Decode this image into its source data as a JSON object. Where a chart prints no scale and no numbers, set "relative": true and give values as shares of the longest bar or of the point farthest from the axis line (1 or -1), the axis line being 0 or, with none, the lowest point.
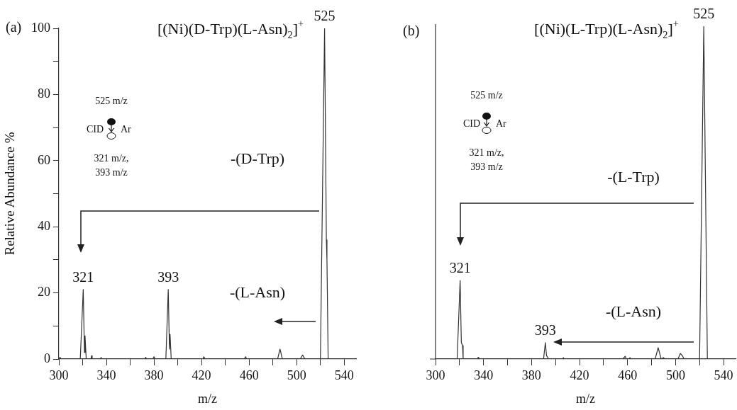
{
  "chart_data": [
    {
      "type": "line",
      "title": "[(Ni)(D-Trp)(L-Asn)$_{2}$]$^{+}$",
      "xlabel": "m/z",
      "ylabel": "Relative Abundance %",
      "x": [
        300,
        301,
        302,
        318,
        320.5,
        321.5,
        322,
        323,
        327,
        327.5,
        328,
        335,
        335.5,
        336,
        372,
        373,
        374,
        379,
        380,
        381,
        390,
        392,
        393,
        393.5,
        394.5,
        421,
        422,
        423,
        456,
        457,
        458,
        484,
        486,
        488,
        503,
        505,
        507,
        520,
        523.5,
        525,
        525.5,
        526.5,
        550
      ],
      "series": [
        {
          "color": "#333333",
          "values": [
            0,
            0.5,
            0,
            0,
            21,
            2,
            7,
            0,
            0,
            1,
            0,
            0,
            0.5,
            0,
            0,
            0.5,
            0,
            0,
            0.7,
            0,
            0,
            21,
            3,
            7.5,
            0,
            0,
            0.7,
            0,
            0,
            0.7,
            0,
            0,
            3,
            0,
            0,
            1.2,
            0,
            0,
            100,
            36,
            30,
            0,
            0
          ]
        }
      ],
      "xlim": [
        300,
        550
      ],
      "xticks": [
        300,
        {
          "value": 320,
          "label": null
        },
        340,
        {
          "value": 360,
          "label": null
        },
        380,
        {
          "value": 400,
          "label": null
        },
        420,
        {
          "value": 440,
          "label": null
        },
        460,
        {
          "value": 480,
          "label": null
        },
        500,
        {
          "value": 520,
          "label": null
        },
        540
      ],
      "ylim": [
        0,
        100
      ],
      "yticks": [
        0,
        {
          "value": 10,
          "label": null
        },
        20,
        {
          "value": 30,
          "label": null
        },
        40,
        {
          "value": 50,
          "label": null
        },
        60,
        {
          "value": 70,
          "label": null
        },
        80,
        {
          "value": 90,
          "label": null
        },
        100
      ],
      "grid": false,
      "legend": false,
      "marker": "none",
      "line_style": "solid",
      "annotations": [
        "(a)",
        {
          "text": "525",
          "x": 523.5,
          "y": 100
        },
        {
          "text": "321",
          "x": 320.5,
          "y": 21
        },
        {
          "text": "393",
          "x": 392,
          "y": 21
        },
        "-(D-Trp)",
        "-(L-Asn)",
        "525 m/z",
        "CID",
        "Ar",
        "321 m/z,",
        "393 m/z"
      ]
    },
    {
      "type": "line",
      "title": "[(Ni)(L-Trp)(L-Asn)$_{2}$]$^{+}$",
      "xlabel": "m/z",
      "relative": true,
      "x": [
        300,
        318,
        320.5,
        321.5,
        322.5,
        323,
        335,
        335.5,
        336,
        390,
        391.5,
        392.5,
        393.5,
        394,
        406,
        406.5,
        407,
        456,
        458,
        459,
        461,
        462,
        463,
        483,
        485.5,
        488,
        490,
        491,
        502,
        504,
        506,
        507,
        520,
        523.5,
        526.5,
        550
      ],
      "series": [
        {
          "color": "#333333",
          "values": [
            0,
            0,
            0.236,
            0.05,
            0.04,
            0,
            0,
            0.005,
            0,
            0,
            0.049,
            0.01,
            0.005,
            0,
            0,
            0.004,
            0,
            0,
            0.008,
            0,
            0,
            0.004,
            0,
            0,
            0.034,
            0,
            0.004,
            0,
            0,
            0.017,
            0.008,
            0,
            0,
            1,
            0,
            0
          ]
        }
      ],
      "xlim": [
        300,
        550
      ],
      "xticks": [
        300,
        {
          "value": 320,
          "label": null
        },
        340,
        {
          "value": 360,
          "label": null
        },
        380,
        {
          "value": 400,
          "label": null
        },
        420,
        {
          "value": 440,
          "label": null
        },
        460,
        {
          "value": 480,
          "label": null
        },
        500,
        {
          "value": 520,
          "label": null
        },
        540
      ],
      "grid": false,
      "legend": false,
      "marker": "none",
      "line_style": "solid",
      "annotations": [
        "(b)",
        {
          "text": "525",
          "x": 523.5,
          "y": 1
        },
        {
          "text": "321",
          "x": 320.5,
          "y": 0.236
        },
        {
          "text": "393",
          "x": 391.5,
          "y": 0.049
        },
        "-(L-Trp)",
        "-(L-Asn)",
        "525 m/z",
        "CID",
        "Ar",
        "321 m/z,",
        "393 m/z"
      ]
    }
  ]
}
